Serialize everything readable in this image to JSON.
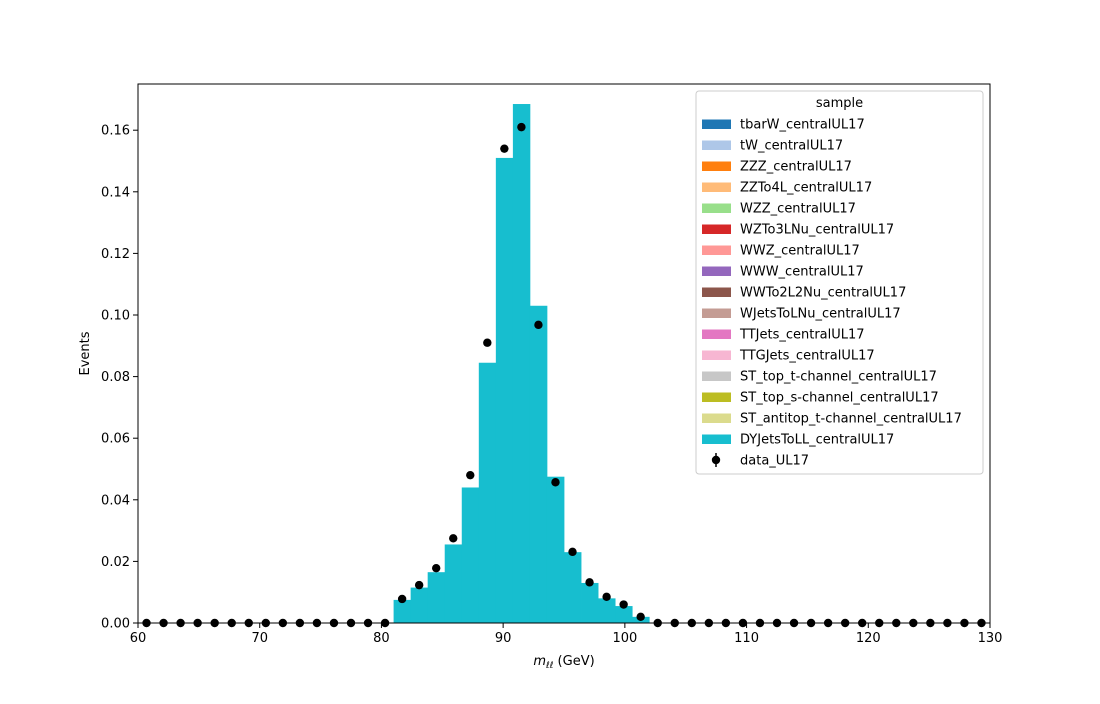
{
  "chart_data": {
    "type": "bar",
    "stacked_histogram": true,
    "xlabel_symbol": "m",
    "xlabel_subscript": "ℓℓ",
    "xlabel_unit": " (GeV)",
    "ylabel": "Events",
    "xlim": [
      60,
      130
    ],
    "ylim": [
      0,
      0.175
    ],
    "xticks": [
      60,
      70,
      80,
      90,
      100,
      110,
      120,
      130
    ],
    "yticks": [
      0.0,
      0.02,
      0.04,
      0.06,
      0.08,
      0.1,
      0.12,
      0.14,
      0.16
    ],
    "grid": false,
    "legend": {
      "title": "sample",
      "placement": "top-right",
      "entries": [
        {
          "label": "tbarW_centralUL17",
          "color": "#1f77b4"
        },
        {
          "label": "tW_centralUL17",
          "color": "#aec7e8"
        },
        {
          "label": "ZZZ_centralUL17",
          "color": "#ff7f0e"
        },
        {
          "label": "ZZTo4L_centralUL17",
          "color": "#ffbb78"
        },
        {
          "label": "WZZ_centralUL17",
          "color": "#98df8a"
        },
        {
          "label": "WZTo3LNu_centralUL17",
          "color": "#d62728"
        },
        {
          "label": "WWZ_centralUL17",
          "color": "#ff9896"
        },
        {
          "label": "WWW_centralUL17",
          "color": "#9467bd"
        },
        {
          "label": "WWTo2L2Nu_centralUL17",
          "color": "#8c564b"
        },
        {
          "label": "WJetsToLNu_centralUL17",
          "color": "#c49c94"
        },
        {
          "label": "TTJets_centralUL17",
          "color": "#e377c2"
        },
        {
          "label": "TTGJets_centralUL17",
          "color": "#f7b6d2"
        },
        {
          "label": "ST_top_t-channel_centralUL17",
          "color": "#c7c7c7"
        },
        {
          "label": "ST_top_s-channel_centralUL17",
          "color": "#bcbd22"
        },
        {
          "label": "ST_antitop_t-channel_centralUL17",
          "color": "#dbdb8d"
        },
        {
          "label": "DYJetsToLL_centralUL17",
          "color": "#17becf"
        }
      ],
      "data_label": "data_UL17"
    },
    "bins": {
      "edges": [
        81.0,
        82.4,
        83.8,
        85.2,
        86.6,
        88.0,
        89.4,
        90.8,
        92.2,
        93.6,
        95.0,
        96.4,
        97.8,
        99.2,
        100.6,
        102.0
      ],
      "values": [
        0.0075,
        0.0115,
        0.0165,
        0.0255,
        0.044,
        0.0845,
        0.151,
        0.1685,
        0.103,
        0.0475,
        0.023,
        0.013,
        0.008,
        0.0055,
        0.002
      ]
    },
    "series": [
      {
        "name": "DYJetsToLL_centralUL17",
        "color": "#17becf"
      }
    ],
    "data_points": {
      "name": "data_UL17",
      "color": "#000000",
      "x": [
        60.7,
        62.1,
        63.5,
        64.9,
        66.3,
        67.7,
        69.1,
        70.5,
        71.9,
        73.3,
        74.7,
        76.1,
        77.5,
        78.9,
        80.3,
        81.7,
        83.1,
        84.5,
        85.9,
        87.3,
        88.7,
        90.1,
        91.5,
        92.9,
        94.3,
        95.7,
        97.1,
        98.5,
        99.9,
        101.3,
        102.7,
        104.1,
        105.5,
        106.9,
        108.3,
        109.7,
        111.1,
        112.5,
        113.9,
        115.3,
        116.7,
        118.1,
        119.5,
        120.9,
        122.3,
        123.7,
        125.1,
        126.5,
        127.9,
        129.3
      ],
      "y": [
        0,
        0,
        0,
        0,
        0,
        0,
        0,
        0,
        0,
        0,
        0,
        0,
        0,
        0,
        0,
        0.0078,
        0.0123,
        0.0178,
        0.0275,
        0.048,
        0.091,
        0.154,
        0.161,
        0.0968,
        0.0457,
        0.0231,
        0.0132,
        0.0085,
        0.006,
        0.002,
        0,
        0,
        0,
        0,
        0,
        0,
        0,
        0,
        0,
        0,
        0,
        0,
        0,
        0,
        0,
        0,
        0,
        0,
        0,
        0
      ]
    }
  }
}
